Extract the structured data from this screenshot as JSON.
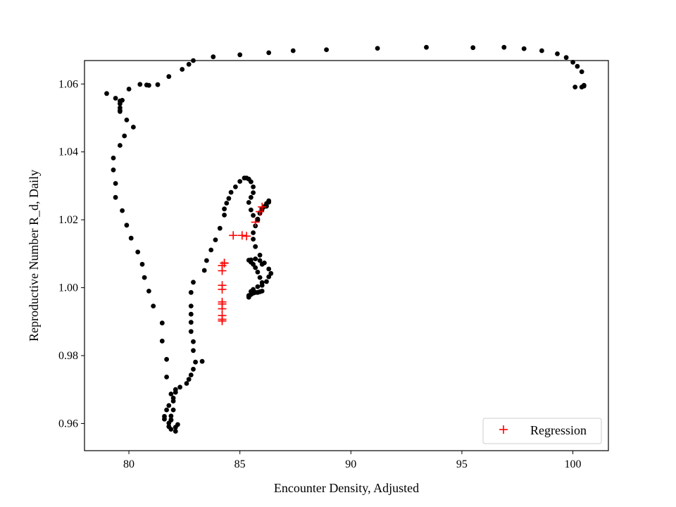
{
  "chart_data": {
    "type": "scatter",
    "title": "",
    "xlabel": "Encounter Density, Adjusted",
    "ylabel": "Reproductive Number R_d, Daily",
    "xlim": [
      78.0,
      101.6
    ],
    "ylim": [
      0.952,
      1.0669
    ],
    "x_ticks": [
      80,
      85,
      90,
      95,
      100
    ],
    "y_ticks": [
      0.96,
      0.98,
      1.0,
      1.02,
      1.04,
      1.06
    ],
    "x_tick_labels": [
      "80",
      "85",
      "90",
      "95",
      "100"
    ],
    "y_tick_labels": [
      "0.96",
      "0.98",
      "1.00",
      "1.02",
      "1.04",
      "1.06"
    ],
    "grid": false,
    "legend_position": "lower-right",
    "legend_label": "Regression",
    "series": [
      {
        "name": "",
        "marker": "dot",
        "color": "#000000",
        "x": [
          100.5,
          100.4,
          100.2,
          100.0,
          99.7,
          99.3,
          98.6,
          97.8,
          96.9,
          95.5,
          93.4,
          91.2,
          88.9,
          87.4,
          86.3,
          85.0,
          83.8,
          82.9,
          82.7,
          82.4,
          81.8,
          81.3,
          80.9,
          80.8,
          80.5,
          80.0,
          79.7,
          79.6,
          79.6,
          79.4,
          79.0,
          79.6,
          79.6,
          79.6,
          79.9,
          80.2,
          79.8,
          79.6,
          79.3,
          79.3,
          79.4,
          79.4,
          79.7,
          79.9,
          80.1,
          80.4,
          80.6,
          80.7,
          80.9,
          81.1,
          81.5,
          81.5,
          81.7,
          81.7,
          81.9,
          82.0,
          81.9,
          82.1,
          82.1,
          82.2,
          81.9,
          81.9,
          81.9,
          81.8,
          81.8,
          81.6,
          81.6,
          81.7,
          81.8,
          82.0,
          82.0,
          82.1,
          82.1,
          82.3,
          82.6,
          82.7,
          82.8,
          82.9,
          83.0,
          83.3,
          82.9,
          82.9,
          82.8,
          82.8,
          82.8,
          82.8,
          82.8,
          82.9,
          83.4,
          83.5,
          83.7,
          83.9,
          84.1,
          84.3,
          84.3,
          84.4,
          84.5,
          84.6,
          84.8,
          85.0,
          85.2,
          85.3,
          85.4,
          85.5,
          85.6,
          85.6,
          85.5,
          85.4,
          85.5,
          85.6,
          85.8,
          85.9,
          86.0,
          86.1,
          86.2,
          86.3,
          86.3,
          86.2,
          86.0,
          85.9,
          85.8,
          85.7,
          85.6,
          85.6,
          85.7,
          85.9,
          86.1,
          86.3,
          86.4,
          86.3,
          86.2,
          86.0,
          85.8,
          85.6,
          85.5,
          85.4,
          85.4,
          85.5,
          85.6,
          85.7,
          85.8,
          85.9,
          86.0,
          86.0,
          85.9,
          85.8,
          85.7,
          85.6,
          85.5,
          85.4,
          85.5,
          85.7,
          85.9,
          86.0,
          100.1,
          100.4,
          100.5
        ],
        "y": [
          1.0596,
          1.0636,
          1.0652,
          1.0664,
          1.0678,
          1.0689,
          1.0698,
          1.0704,
          1.0708,
          1.0707,
          1.0708,
          1.0705,
          1.0701,
          1.0698,
          1.0692,
          1.0686,
          1.068,
          1.0669,
          1.0658,
          1.0643,
          1.0622,
          1.0598,
          1.0596,
          1.0597,
          1.0599,
          1.0585,
          1.0552,
          1.0542,
          1.053,
          1.0558,
          1.0572,
          1.055,
          1.0522,
          1.0519,
          1.0494,
          1.0473,
          1.0447,
          1.0419,
          1.0382,
          1.0347,
          1.0307,
          1.0266,
          1.0227,
          1.0184,
          1.0146,
          1.0105,
          1.0069,
          1.003,
          0.999,
          0.9946,
          0.9896,
          0.9843,
          0.9789,
          0.9737,
          0.9687,
          0.964,
          0.961,
          0.9577,
          0.9589,
          0.9597,
          0.9611,
          0.9622,
          0.9583,
          0.9591,
          0.9601,
          0.9613,
          0.9621,
          0.964,
          0.9653,
          0.9666,
          0.9675,
          0.9692,
          0.97,
          0.9707,
          0.9718,
          0.973,
          0.9743,
          0.976,
          0.9781,
          0.9783,
          0.9815,
          0.9841,
          0.9871,
          0.9898,
          0.9922,
          0.9946,
          0.9986,
          1.0016,
          1.0051,
          1.008,
          1.0111,
          1.0141,
          1.0175,
          1.0214,
          1.0232,
          1.0249,
          1.0263,
          1.0281,
          1.0297,
          1.0313,
          1.0323,
          1.0323,
          1.032,
          1.0312,
          1.0297,
          1.028,
          1.0266,
          1.0251,
          1.0229,
          1.0213,
          1.0199,
          1.0219,
          1.0231,
          1.0239,
          1.0248,
          1.0256,
          1.0252,
          1.024,
          1.0232,
          1.0221,
          1.0202,
          1.0182,
          1.0162,
          1.0143,
          1.0121,
          1.0096,
          1.0073,
          1.0055,
          1.0042,
          1.0032,
          1.0018,
          1.0007,
          1.0003,
          0.9995,
          0.9989,
          0.9977,
          0.9972,
          0.998,
          0.9984,
          0.9986,
          0.9986,
          0.9988,
          0.999,
          1.0015,
          1.003,
          1.0046,
          1.0059,
          1.0069,
          1.0075,
          1.0081,
          1.0082,
          1.0085,
          1.008,
          1.0069,
          1.0591,
          1.0591,
          1.0594
        ]
      },
      {
        "name": "Regression",
        "marker": "plus",
        "color": "#ff0000",
        "x": [
          84.2,
          84.2,
          84.2,
          84.2,
          84.2,
          84.2,
          84.2,
          84.2,
          84.2,
          84.2,
          84.3,
          84.3,
          84.7,
          85.1,
          85.3,
          85.7,
          85.9,
          86.0
        ],
        "y": [
          0.9902,
          0.9907,
          0.9918,
          0.9938,
          0.9952,
          0.9958,
          0.9995,
          1.0007,
          1.005,
          1.0065,
          1.0073,
          1.0072,
          1.0154,
          1.0154,
          1.0152,
          1.0193,
          1.0224,
          1.0238
        ]
      }
    ]
  }
}
